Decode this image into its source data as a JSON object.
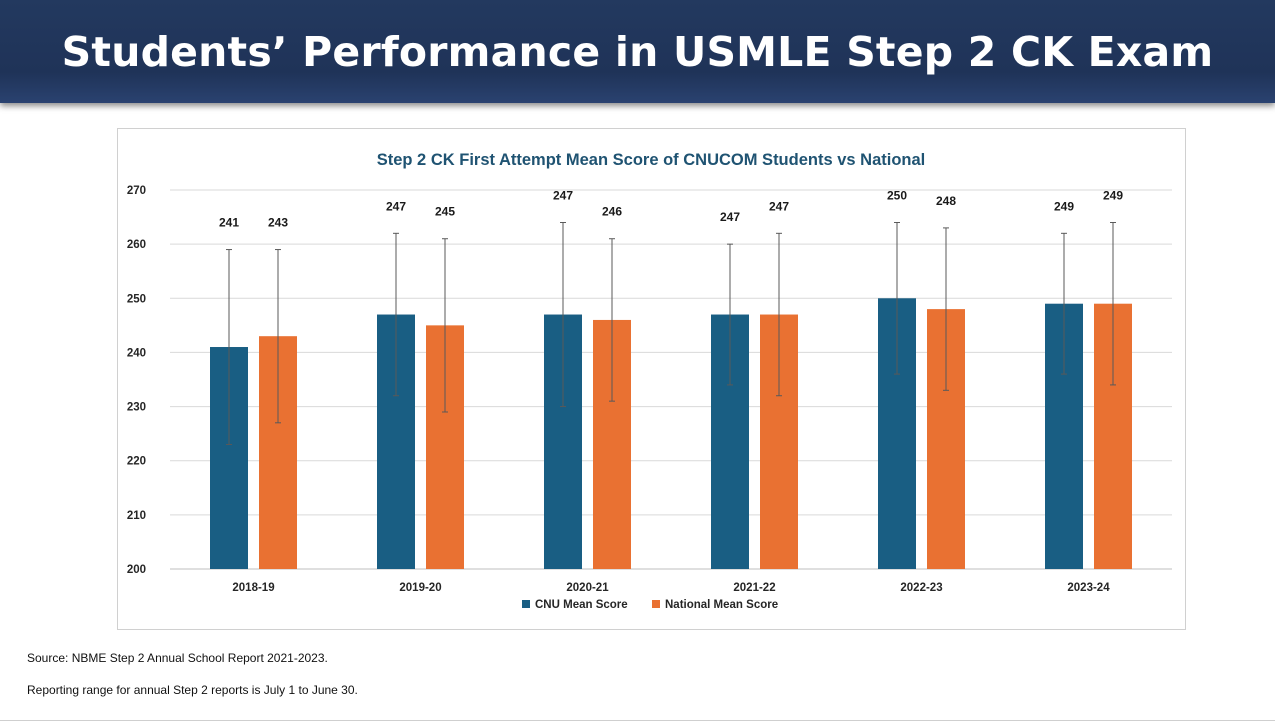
{
  "slide": {
    "title": "Students’ Performance in USMLE Step 2 CK Exam"
  },
  "footer": {
    "source": "Source: NBME Step 2 Annual School Report 2021-2023.",
    "note": "Reporting range for annual Step 2 reports is July 1 to June 30."
  },
  "chart_data": {
    "type": "bar",
    "title": "Step 2 CK First Attempt Mean Score of CNUCOM Students vs National",
    "xlabel": "",
    "ylabel": "",
    "ylim": [
      200,
      270
    ],
    "yticks": [
      200,
      210,
      220,
      230,
      240,
      250,
      260,
      270
    ],
    "grid": true,
    "legend_position": "bottom",
    "categories": [
      "2018-19",
      "2019-20",
      "2020-21",
      "2021-22",
      "2022-23",
      "2023-24"
    ],
    "series": [
      {
        "name": "CNU Mean Score",
        "color": "#195e83",
        "values": [
          241,
          247,
          247,
          247,
          250,
          249
        ],
        "error_low": [
          223,
          232,
          230,
          234,
          236,
          236
        ],
        "error_high": [
          259,
          262,
          264,
          260,
          264,
          262
        ]
      },
      {
        "name": "National Mean Score",
        "color": "#e97132",
        "values": [
          243,
          245,
          246,
          247,
          248,
          249
        ],
        "error_low": [
          227,
          229,
          231,
          232,
          233,
          234
        ],
        "error_high": [
          259,
          261,
          261,
          262,
          263,
          264
        ]
      }
    ],
    "colors": {
      "title": "#1f5372",
      "grid": "#d9d9d9",
      "error_bar": "#595959"
    }
  }
}
